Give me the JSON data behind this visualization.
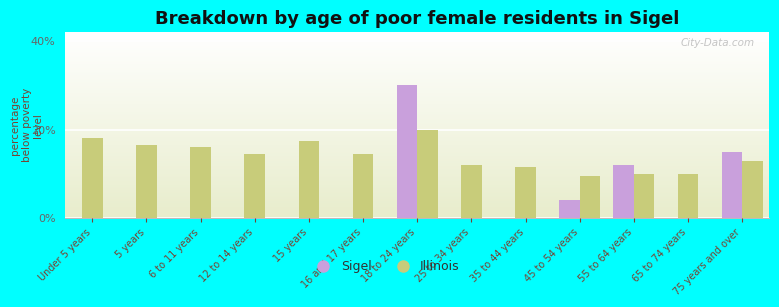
{
  "title": "Breakdown by age of poor female residents in Sigel",
  "ylabel": "percentage\nbelow poverty\nlevel",
  "categories": [
    "Under 5 years",
    "5 years",
    "6 to 11 years",
    "12 to 14 years",
    "15 years",
    "16 and 17 years",
    "18 to 24 years",
    "25 to 34 years",
    "35 to 44 years",
    "45 to 54 years",
    "55 to 64 years",
    "65 to 74 years",
    "75 years and over"
  ],
  "sigel_values": [
    null,
    null,
    null,
    null,
    null,
    null,
    30.0,
    null,
    null,
    4.0,
    12.0,
    null,
    15.0
  ],
  "illinois_values": [
    18.0,
    16.5,
    16.0,
    14.5,
    17.5,
    14.5,
    20.0,
    12.0,
    11.5,
    9.5,
    10.0,
    10.0,
    13.0
  ],
  "sigel_color": "#c9a0dc",
  "illinois_color": "#c8cc7a",
  "background_color": "#00ffff",
  "ylim": [
    0,
    42
  ],
  "yticks": [
    0,
    20,
    40
  ],
  "ytick_labels": [
    "0%",
    "20%",
    "40%"
  ],
  "bar_width": 0.38,
  "title_fontsize": 13,
  "watermark": "City-Data.com"
}
